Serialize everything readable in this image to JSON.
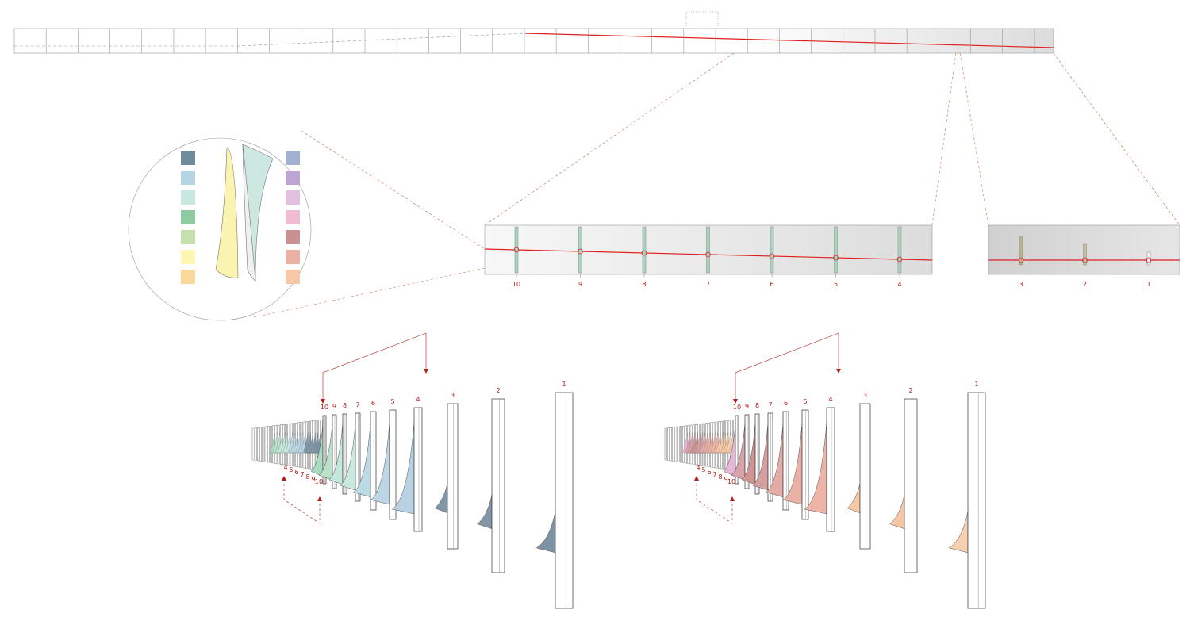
{
  "zoom_panel_near": {
    "labels": [
      "10",
      "9",
      "8",
      "7",
      "6",
      "5",
      "4"
    ]
  },
  "zoom_panel_far": {
    "labels": [
      "3",
      "2",
      "1"
    ]
  },
  "left_array": {
    "top_labels": [
      "10",
      "9",
      "8",
      "7",
      "6",
      "5",
      "4",
      "3",
      "2",
      "1"
    ],
    "bottom_labels": [
      "4",
      "5",
      "6",
      "7",
      "8",
      "9",
      "10"
    ]
  },
  "right_array": {
    "top_labels": [
      "10",
      "9",
      "8",
      "7",
      "6",
      "5",
      "4",
      "3",
      "2",
      "1"
    ],
    "bottom_labels": [
      "4",
      "5",
      "6",
      "7",
      "8",
      "9",
      "10"
    ]
  }
}
